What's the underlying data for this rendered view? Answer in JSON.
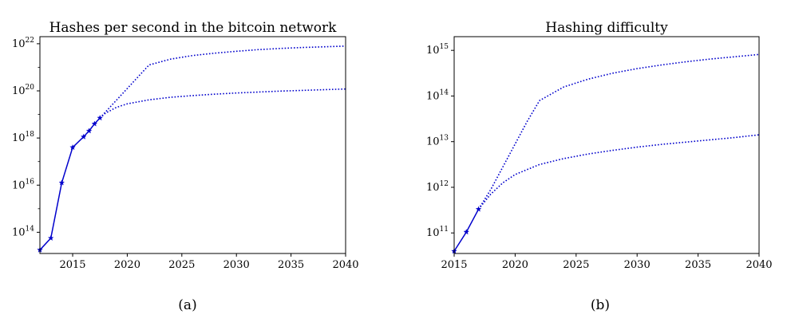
{
  "chart_data": [
    {
      "type": "line",
      "title": "Hashes per second in the bitcoin network",
      "caption": "(a)",
      "yscale": "log",
      "xlim": [
        2012,
        2040
      ],
      "ylim": [
        13.1,
        22.3
      ],
      "x_ticks": [
        2015,
        2020,
        2025,
        2030,
        2035,
        2040
      ],
      "y_ticks": [
        {
          "exp": 14,
          "base": "10",
          "sup": "14"
        },
        {
          "exp": 16,
          "base": "10",
          "sup": "16"
        },
        {
          "exp": 18,
          "base": "10",
          "sup": "18"
        },
        {
          "exp": 20,
          "base": "10",
          "sup": "20"
        },
        {
          "exp": 22,
          "base": "10",
          "sup": "22"
        }
      ],
      "series": [
        {
          "style": "solid-star",
          "color": "#0000cc",
          "x": [
            2012,
            2013,
            2014,
            2015,
            2016,
            2016.5,
            2017,
            2017.5
          ],
          "log10_y": [
            13.25,
            13.75,
            16.1,
            17.6,
            18.05,
            18.3,
            18.6,
            18.85
          ]
        },
        {
          "style": "dotted",
          "color": "#0000cc",
          "x": [
            2017.5,
            2018,
            2019,
            2020,
            2021,
            2022,
            2024,
            2026,
            2028,
            2030,
            2032,
            2034,
            2036,
            2038,
            2040
          ],
          "log10_y": [
            18.85,
            19.1,
            19.6,
            20.1,
            20.6,
            21.1,
            21.35,
            21.5,
            21.6,
            21.68,
            21.75,
            21.8,
            21.84,
            21.87,
            21.9
          ]
        },
        {
          "style": "dotted",
          "color": "#0000cc",
          "x": [
            2017.5,
            2018,
            2019,
            2020,
            2022,
            2024,
            2026,
            2028,
            2030,
            2032,
            2034,
            2036,
            2038,
            2040
          ],
          "log10_y": [
            18.85,
            19.05,
            19.3,
            19.45,
            19.62,
            19.73,
            19.8,
            19.86,
            19.91,
            19.95,
            19.99,
            20.02,
            20.05,
            20.08
          ]
        }
      ]
    },
    {
      "type": "line",
      "title": "Hashing difficulty",
      "caption": "(b)",
      "yscale": "log",
      "xlim": [
        2015,
        2040
      ],
      "ylim": [
        10.55,
        15.3
      ],
      "x_ticks": [
        2015,
        2020,
        2025,
        2030,
        2035,
        2040
      ],
      "y_ticks": [
        {
          "exp": 11,
          "base": "10",
          "sup": "11"
        },
        {
          "exp": 12,
          "base": "10",
          "sup": "12"
        },
        {
          "exp": 13,
          "base": "10",
          "sup": "13"
        },
        {
          "exp": 14,
          "base": "10",
          "sup": "14"
        },
        {
          "exp": 15,
          "base": "10",
          "sup": "15"
        }
      ],
      "series": [
        {
          "style": "solid-star",
          "color": "#0000cc",
          "x": [
            2015,
            2016,
            2017
          ],
          "log10_y": [
            10.6,
            11.02,
            11.52
          ]
        },
        {
          "style": "dotted",
          "color": "#0000cc",
          "x": [
            2017,
            2018,
            2019,
            2020,
            2021,
            2022,
            2024,
            2026,
            2028,
            2030,
            2032,
            2034,
            2036,
            2038,
            2040
          ],
          "log10_y": [
            11.52,
            11.95,
            12.45,
            12.95,
            13.45,
            13.9,
            14.2,
            14.37,
            14.5,
            14.6,
            14.68,
            14.75,
            14.81,
            14.86,
            14.91
          ]
        },
        {
          "style": "dotted",
          "color": "#0000cc",
          "x": [
            2017,
            2018,
            2019,
            2020,
            2022,
            2024,
            2026,
            2028,
            2030,
            2032,
            2034,
            2036,
            2038,
            2040
          ],
          "log10_y": [
            11.52,
            11.85,
            12.1,
            12.28,
            12.5,
            12.63,
            12.73,
            12.81,
            12.88,
            12.94,
            12.99,
            13.04,
            13.09,
            13.15
          ]
        }
      ]
    }
  ]
}
